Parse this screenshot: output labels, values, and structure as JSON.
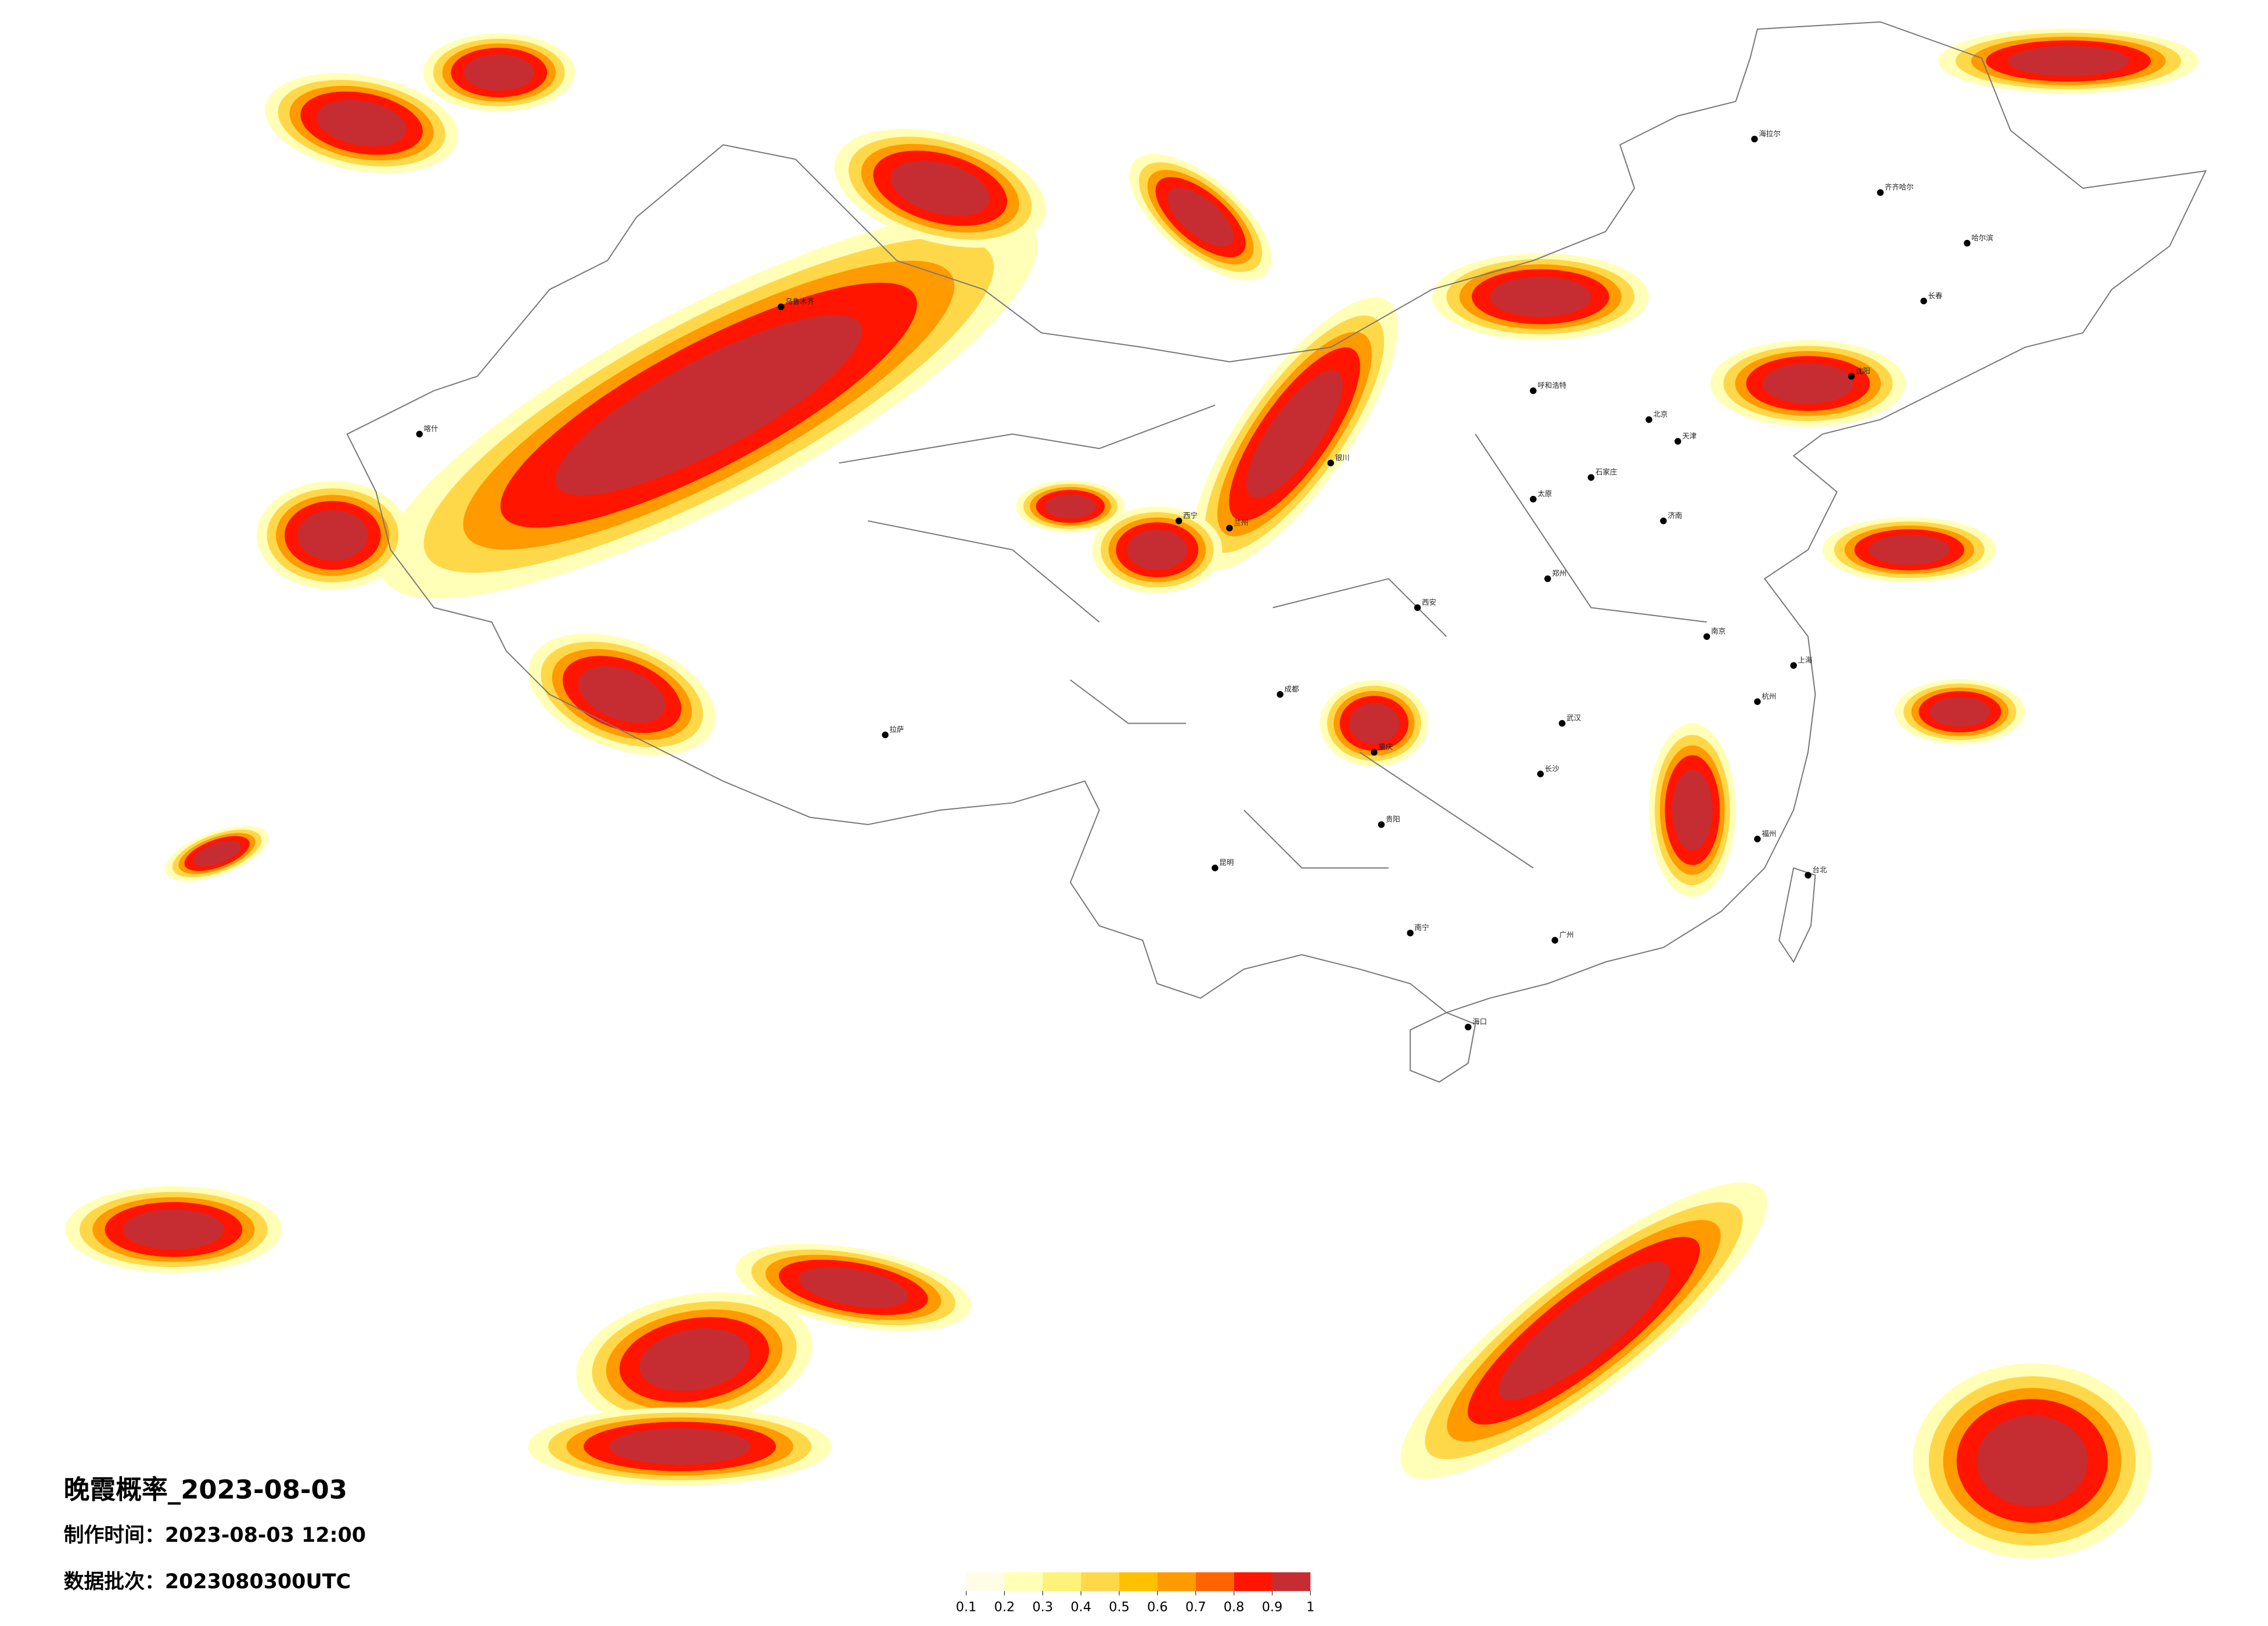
{
  "title": "晚霞概率_2023-08-03",
  "produced": "制作时间：2023-08-03 12:00",
  "batch": "数据批次：2023080300UTC",
  "colorbar": {
    "colors": [
      "#fffde6",
      "#ffffb8",
      "#fff27a",
      "#ffd84a",
      "#ffc000",
      "#ff9a00",
      "#ff6400",
      "#ff1500",
      "#c62d32"
    ],
    "ticks": [
      0.1,
      0.2,
      0.3,
      0.4,
      0.5,
      0.6,
      0.7,
      0.8,
      0.9,
      1
    ]
  },
  "cities": [
    "海拉尔",
    "齐齐哈尔",
    "哈尔滨",
    "长春",
    "沈阳",
    "呼和浩特",
    "北京",
    "天津",
    "石家庄",
    "太原",
    "银川",
    "兰州",
    "西宁",
    "乌鲁木齐",
    "喀什",
    "拉萨",
    "成都",
    "重庆",
    "西安",
    "郑州",
    "济南",
    "南京",
    "上海",
    "杭州",
    "武汉",
    "长沙",
    "贵阳",
    "昆明",
    "南宁",
    "广州",
    "福州",
    "台北",
    "海口"
  ]
}
